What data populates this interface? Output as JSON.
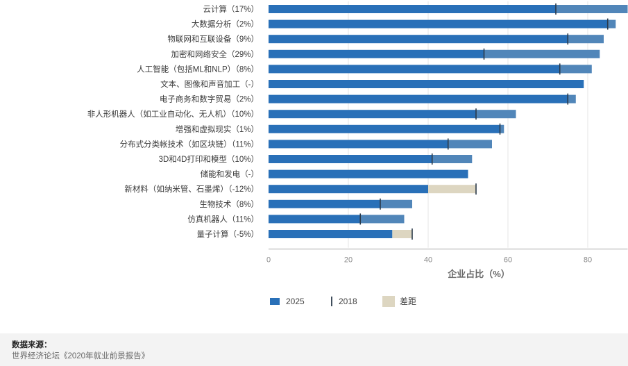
{
  "chart_data": {
    "type": "bar",
    "xlabel": "企业占比（%）",
    "xlim": [
      0,
      90
    ],
    "xticks": [
      0,
      20,
      40,
      60,
      80
    ],
    "categories": [
      "云计算（17%）",
      "大数据分析（2%）",
      "物联网和互联设备（9%）",
      "加密和网络安全（29%）",
      "人工智能（包括ML和NLP）（8%）",
      "文本、图像和声音加工（-）",
      "电子商务和数字贸易（2%）",
      "非人形机器人（如工业自动化、无人机）（10%）",
      "增强和虚拟现实（1%）",
      "分布式分类帐技术（如区块链）（11%）",
      "3D和4D打印和模型（10%）",
      "储能和发电（-）",
      "新材料（如纳米管、石墨烯）（-12%）",
      "生物技术（8%）",
      "仿真机器人（11%）",
      "量子计算（-5%）"
    ],
    "series": [
      {
        "name": "2025",
        "values": [
          90,
          87,
          84,
          83,
          81,
          79,
          77,
          62,
          59,
          56,
          51,
          50,
          40,
          36,
          34,
          31
        ]
      },
      {
        "name": "2018",
        "values": [
          72,
          85,
          75,
          54,
          73,
          null,
          75,
          52,
          58,
          45,
          41,
          null,
          52,
          28,
          23,
          36
        ]
      }
    ],
    "legend": {
      "position": "bottom",
      "items": [
        "2025",
        "2018",
        "差距"
      ]
    },
    "colors": {
      "bar_2025": "#2970b8",
      "marker_2018": "#2b3a4a",
      "gap": "#ddd6c1",
      "axis": "#aaaaaa"
    }
  },
  "source": {
    "label": "数据来源：",
    "text": "世界经济论坛《2020年就业前景报告》"
  }
}
